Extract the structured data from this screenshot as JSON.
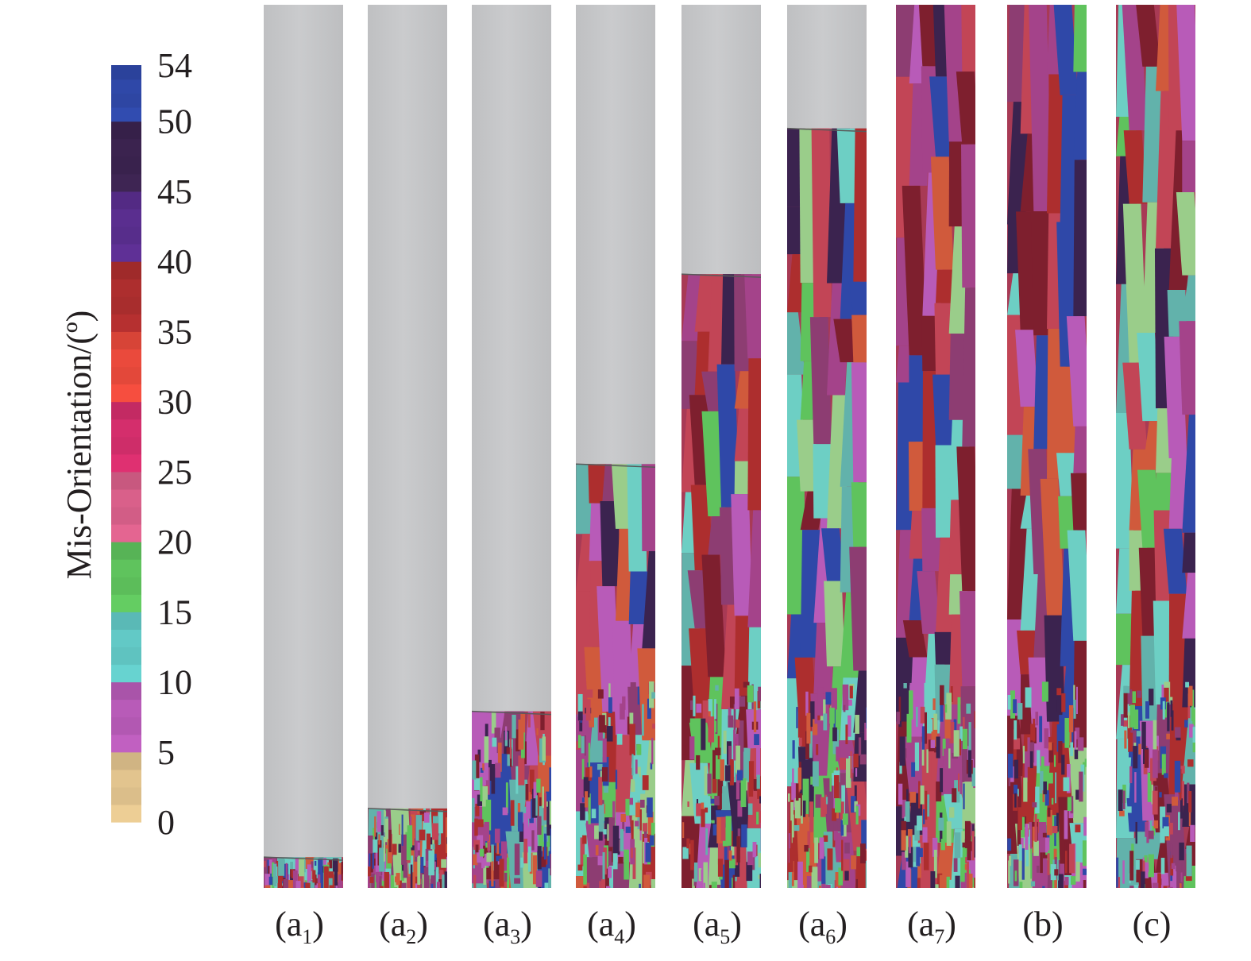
{
  "colorbar": {
    "title": "Mis-Orientation/(º)",
    "ticks": [
      "54",
      "50",
      "45",
      "40",
      "35",
      "30",
      "25",
      "20",
      "15",
      "10",
      "5",
      "0"
    ],
    "range": [
      0,
      54
    ],
    "bands": [
      {
        "from": 0,
        "to": 5,
        "color": "#e2c48e"
      },
      {
        "from": 5,
        "to": 10,
        "color": "#b85bb8"
      },
      {
        "from": 10,
        "to": 15,
        "color": "#62c9c6"
      },
      {
        "from": 15,
        "to": 20,
        "color": "#5fc35d"
      },
      {
        "from": 20,
        "to": 25,
        "color": "#d9608a"
      },
      {
        "from": 25,
        "to": 30,
        "color": "#d42e6c"
      },
      {
        "from": 30,
        "to": 35,
        "color": "#ea4a3c"
      },
      {
        "from": 35,
        "to": 40,
        "color": "#ad2e2e"
      },
      {
        "from": 40,
        "to": 45,
        "color": "#5a2e8f"
      },
      {
        "from": 45,
        "to": 50,
        "color": "#3b234f"
      },
      {
        "from": 50,
        "to": 54,
        "color": "#2f48a8"
      }
    ]
  },
  "panels": [
    {
      "label_main": "a",
      "label_sub": "1",
      "fill_fraction": 0.035
    },
    {
      "label_main": "a",
      "label_sub": "2",
      "fill_fraction": 0.09
    },
    {
      "label_main": "a",
      "label_sub": "3",
      "fill_fraction": 0.2
    },
    {
      "label_main": "a",
      "label_sub": "4",
      "fill_fraction": 0.48
    },
    {
      "label_main": "a",
      "label_sub": "5",
      "fill_fraction": 0.695
    },
    {
      "label_main": "a",
      "label_sub": "6",
      "fill_fraction": 0.86
    },
    {
      "label_main": "a",
      "label_sub": "7",
      "fill_fraction": 1.0
    },
    {
      "label_main": "b",
      "label_sub": "",
      "fill_fraction": 1.0
    },
    {
      "label_main": "c",
      "label_sub": "",
      "fill_fraction": 1.0
    }
  ],
  "colors": {
    "unsolidified": "#c6c7c9",
    "text": "#231f20"
  }
}
